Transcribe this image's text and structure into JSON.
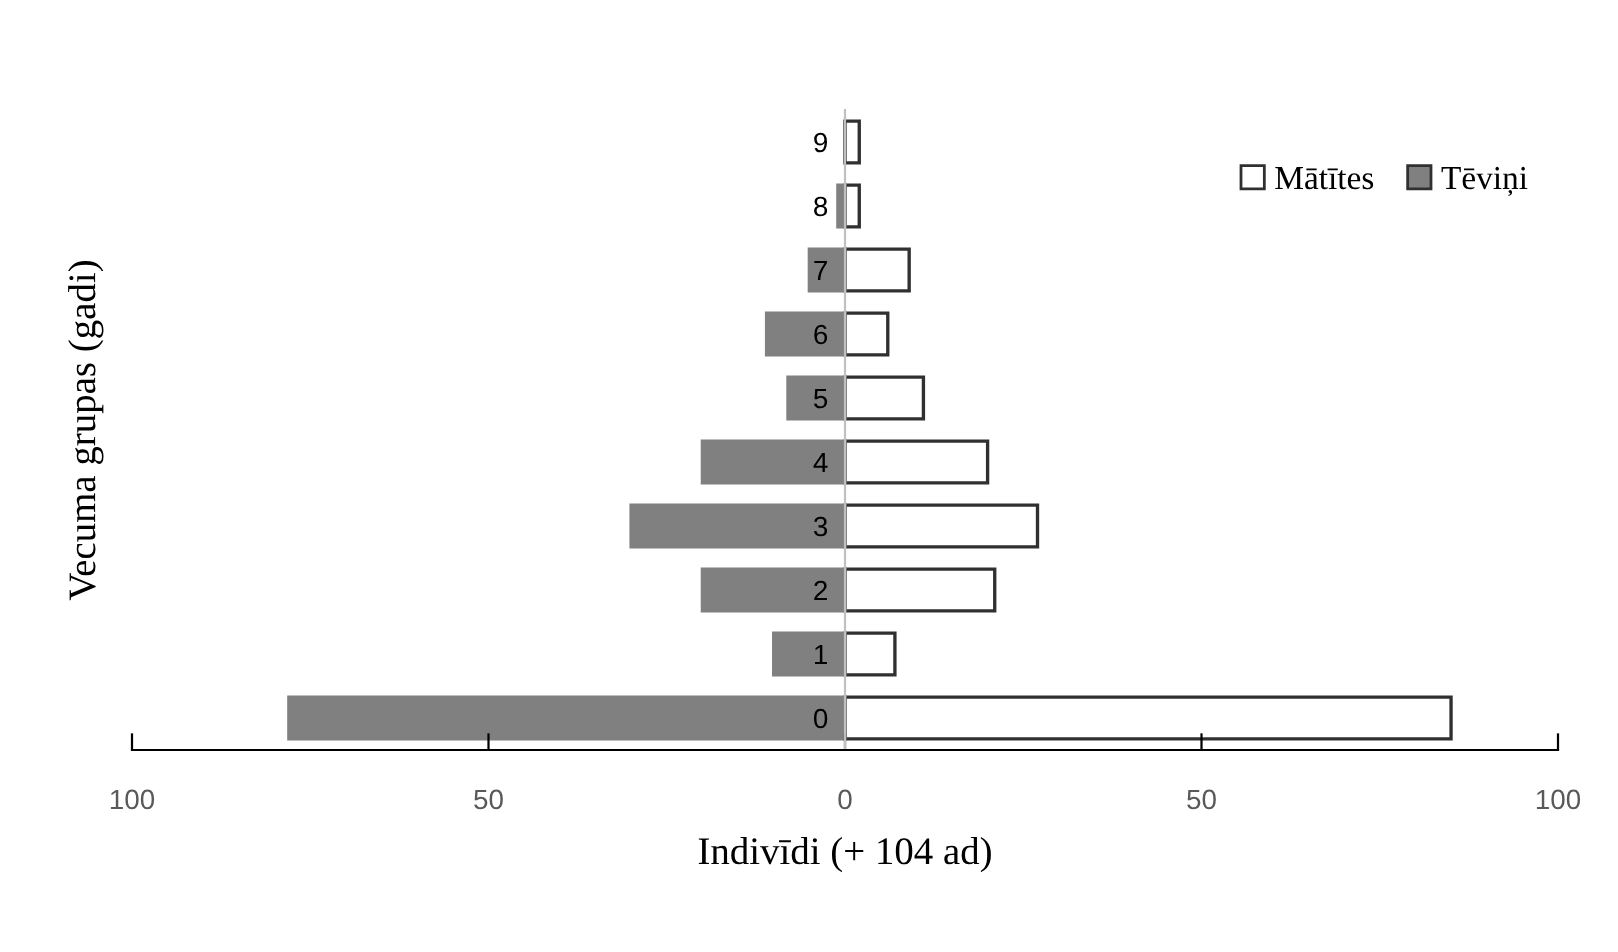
{
  "chart_data": {
    "type": "bar",
    "orientation": "horizontal",
    "stacked": true,
    "xlabel": "Indivīdi (+ 104 ad)",
    "ylabel": "Vecuma grupas (gadi)",
    "categories": [
      "9",
      "8",
      "7",
      "6",
      "5",
      "4",
      "3",
      "2",
      "1",
      "0"
    ],
    "series": [
      {
        "name": "Mātītes",
        "color": "#ffffff",
        "values": [
          2,
          2,
          9,
          6,
          11,
          20,
          27,
          21,
          7,
          85
        ]
      },
      {
        "name": "Tēviņi",
        "color": "#808080",
        "values": [
          null,
          -1,
          -5,
          -11,
          -8,
          -20,
          -30,
          -20,
          -10,
          -78
        ]
      }
    ],
    "xlim": [
      -100,
      100
    ],
    "xticks": [
      {
        "value": -100,
        "label": "100"
      },
      {
        "value": -50,
        "label": "50"
      },
      0,
      50,
      100
    ],
    "legend": "top right",
    "grid": false
  }
}
